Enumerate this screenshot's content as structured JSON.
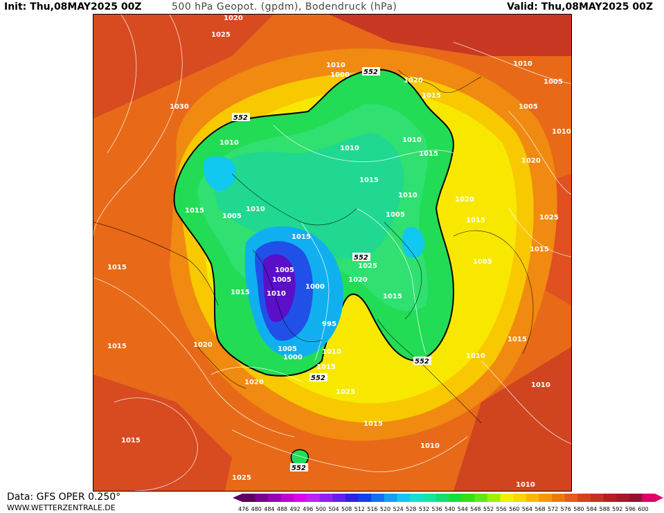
{
  "header": {
    "init": "Init: Thu,08MAY2025 00Z",
    "title": "500 hPa Geopot. (gpdm), Bodendruck (hPa)",
    "valid": "Valid: Thu,08MAY2025 00Z"
  },
  "footer": {
    "data_source": "Data: GFS OPER 0.250°",
    "website": "WWW.WETTERZENTRALE.DE"
  },
  "legend": {
    "ticks": [
      "476",
      "480",
      "484",
      "488",
      "492",
      "496",
      "500",
      "504",
      "508",
      "512",
      "516",
      "520",
      "524",
      "528",
      "532",
      "536",
      "540",
      "544",
      "548",
      "552",
      "556",
      "560",
      "564",
      "568",
      "572",
      "576",
      "580",
      "584",
      "588",
      "592",
      "596",
      "600"
    ],
    "colors": [
      "#5a0060",
      "#7a0090",
      "#9a00b8",
      "#c000d8",
      "#e000f0",
      "#c020f8",
      "#9020f8",
      "#6020f0",
      "#3020e8",
      "#1040f0",
      "#1070f8",
      "#10a0f8",
      "#10c8f0",
      "#10e0d0",
      "#10e8a0",
      "#10e070",
      "#10e040",
      "#30e010",
      "#60e810",
      "#a0f000",
      "#f0f000",
      "#f8d800",
      "#f8b800",
      "#f89800",
      "#f07800",
      "#e85820",
      "#d84020",
      "#c83020",
      "#b82020",
      "#a81828",
      "#981030",
      "#e0006c"
    ]
  },
  "isobar_labels": [
    "1020",
    "1025",
    "1010",
    "1000",
    "1020",
    "1015",
    "1010",
    "1005",
    "1005",
    "1030",
    "1010",
    "1010",
    "1015",
    "1010",
    "1015",
    "1010",
    "1020",
    "1015",
    "1005",
    "1010",
    "1015",
    "1005",
    "1010",
    "1020",
    "1015",
    "1025",
    "1015",
    "1005",
    "1015",
    "1005",
    "1000",
    "1005",
    "1025",
    "1010",
    "1020",
    "1015",
    "1015",
    "995",
    "1015",
    "1020",
    "1005",
    "1010",
    "1000",
    "1015",
    "1015",
    "1025",
    "1010",
    "1020",
    "1010",
    "1015",
    "1010",
    "1015",
    "1025",
    "1010"
  ],
  "contour_552_labels": [
    "552",
    "552",
    "552",
    "552",
    "552",
    "552"
  ]
}
